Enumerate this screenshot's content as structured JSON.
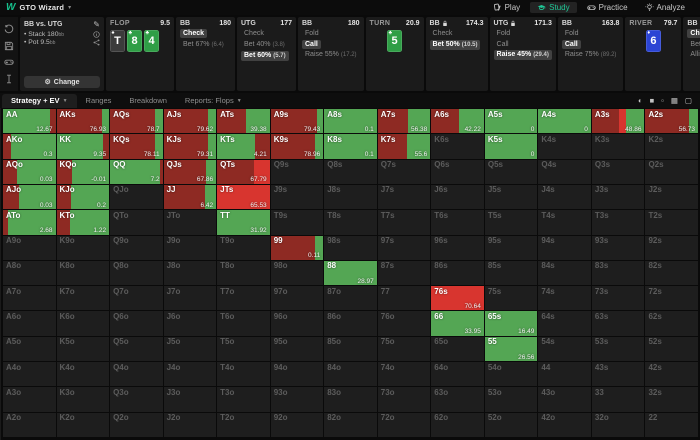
{
  "nav": {
    "brand": "GTO Wizard",
    "tabs": [
      {
        "label": "Play",
        "icon": "cards-icon",
        "active": false
      },
      {
        "label": "Study",
        "icon": "graduation-cap-icon",
        "active": true
      },
      {
        "label": "Practice",
        "icon": "gamepad-icon",
        "active": false
      },
      {
        "label": "Analyze",
        "icon": "lightbulb-icon",
        "active": false
      }
    ],
    "accent_color": "#1fc796"
  },
  "sidebar": {
    "icons": [
      "history-icon",
      "save-icon",
      "gamepad-icon",
      "text-cursor-icon"
    ]
  },
  "strategy_panel": {
    "title": "BB vs. UTG",
    "items": [
      {
        "text": "• Stack 180",
        "unit": "bb"
      },
      {
        "text": "• Pot 9.5",
        "unit": "bb"
      }
    ],
    "change_label": "Change"
  },
  "panels": [
    {
      "kind": "street",
      "name": "FLOP",
      "pot": "9.5",
      "cards": [
        {
          "rank": "T",
          "suit": "spade"
        },
        {
          "rank": "8",
          "suit": "club"
        },
        {
          "rank": "4",
          "suit": "club"
        }
      ]
    },
    {
      "kind": "actions",
      "name": "BB",
      "stack": "180",
      "rows": [
        {
          "label": "Check",
          "selected": true
        },
        {
          "label": "Bet 67%",
          "ev": "(6.4)"
        }
      ]
    },
    {
      "kind": "actions",
      "name": "UTG",
      "stack": "177",
      "rows": [
        {
          "label": "Check"
        },
        {
          "label": "Bet 40%",
          "ev": "(3.8)"
        },
        {
          "label": "Bet 60%",
          "ev": "(5.7)",
          "selected": true
        }
      ]
    },
    {
      "kind": "actions",
      "name": "BB",
      "stack": "180",
      "rows": [
        {
          "label": "Fold"
        },
        {
          "label": "Call",
          "selected": true
        },
        {
          "label": "Raise 55%",
          "ev": "(17.2)"
        }
      ]
    },
    {
      "kind": "street",
      "name": "TURN",
      "pot": "20.9",
      "cards": [
        {
          "rank": "5",
          "suit": "club"
        }
      ]
    },
    {
      "kind": "actions",
      "name": "BB",
      "locked": true,
      "stack": "174.3",
      "rows": [
        {
          "label": "Check"
        },
        {
          "label": "Bet 50%",
          "ev": "(10.5)",
          "selected": true
        }
      ]
    },
    {
      "kind": "actions",
      "name": "UTG",
      "locked": true,
      "stack": "171.3",
      "rows": [
        {
          "label": "Fold"
        },
        {
          "label": "Call"
        },
        {
          "label": "Raise 45%",
          "ev": "(29.4)",
          "selected": true
        }
      ]
    },
    {
      "kind": "actions",
      "name": "BB",
      "stack": "163.8",
      "rows": [
        {
          "label": "Fold"
        },
        {
          "label": "Call",
          "selected": true
        },
        {
          "label": "Raise 75%",
          "ev": "(89.2)"
        }
      ]
    },
    {
      "kind": "street",
      "name": "RIVER",
      "pot": "79.7",
      "cards": [
        {
          "rank": "6",
          "suit": "diamond"
        }
      ]
    },
    {
      "kind": "actions",
      "name": "BB",
      "stack": "",
      "rows": [
        {
          "label": "Check",
          "selected": true
        },
        {
          "label": "Bet"
        },
        {
          "label": "Allin"
        }
      ]
    }
  ],
  "tabbar": {
    "tabs": [
      {
        "label": "Strategy + EV",
        "caret": true,
        "active": true
      },
      {
        "label": "Ranges"
      },
      {
        "label": "Breakdown"
      },
      {
        "label": "Reports: Flops",
        "caret": true
      }
    ],
    "view_icons": [
      {
        "name": "contrast-toggle-icon",
        "glyph": "◐"
      },
      {
        "name": "filled-square-view-icon",
        "glyph": "■"
      },
      {
        "name": "small-square-view-icon",
        "glyph": "▫"
      },
      {
        "name": "grid-view-icon",
        "glyph": "▦"
      },
      {
        "name": "outline-square-view-icon",
        "glyph": "▢"
      }
    ]
  },
  "matrix": {
    "colors": {
      "G": "#54a654",
      "R": "#8e2a23",
      "B": "#d8352f"
    },
    "card_colors": {
      "spade": "#3b3b3b",
      "club": "#2f9e46",
      "diamond": "#2b44d4"
    },
    "suit_glyphs": {
      "spade": "♠",
      "club": "♣",
      "diamond": "♦"
    },
    "rows": [
      [
        {
          "h": "AA",
          "ev": "12.67",
          "seg": [
            [
              "G",
              90
            ],
            [
              "R",
              10
            ]
          ]
        },
        {
          "h": "AKs",
          "ev": "76.93",
          "seg": [
            [
              "R",
              86
            ],
            [
              "G",
              14
            ]
          ]
        },
        {
          "h": "AQs",
          "ev": "78.7",
          "seg": [
            [
              "R",
              85
            ],
            [
              "G",
              15
            ]
          ]
        },
        {
          "h": "AJs",
          "ev": "79.62",
          "seg": [
            [
              "R",
              84
            ],
            [
              "G",
              16
            ]
          ]
        },
        {
          "h": "ATs",
          "ev": "39.38",
          "seg": [
            [
              "R",
              55
            ],
            [
              "G",
              45
            ]
          ]
        },
        {
          "h": "A9s",
          "ev": "79.43",
          "seg": [
            [
              "R",
              88
            ],
            [
              "G",
              12
            ]
          ]
        },
        {
          "h": "A8s",
          "ev": "0.1",
          "seg": [
            [
              "G",
              100
            ]
          ]
        },
        {
          "h": "A7s",
          "ev": "56.38",
          "seg": [
            [
              "R",
              58
            ],
            [
              "G",
              42
            ]
          ]
        },
        {
          "h": "A6s",
          "ev": "42.22",
          "seg": [
            [
              "R",
              52
            ],
            [
              "G",
              48
            ]
          ]
        },
        {
          "h": "A5s",
          "ev": "0",
          "seg": [
            [
              "G",
              100
            ]
          ]
        },
        {
          "h": "A4s",
          "ev": "0",
          "seg": [
            [
              "G",
              100
            ]
          ]
        },
        {
          "h": "A3s",
          "ev": "48.86",
          "seg": [
            [
              "R",
              52
            ],
            [
              "B",
              13
            ],
            [
              "G",
              35
            ]
          ]
        },
        {
          "h": "A2s",
          "ev": "56.73",
          "seg": [
            [
              "R",
              82
            ],
            [
              "G",
              18
            ]
          ]
        }
      ],
      [
        {
          "h": "AKo",
          "ev": "0.3",
          "seg": [
            [
              "R",
              15
            ],
            [
              "G",
              85
            ]
          ]
        },
        {
          "h": "KK",
          "ev": "9.35",
          "seg": [
            [
              "G",
              88
            ],
            [
              "R",
              12
            ]
          ]
        },
        {
          "h": "KQs",
          "ev": "78.11",
          "seg": [
            [
              "R",
              85
            ],
            [
              "G",
              15
            ]
          ]
        },
        {
          "h": "KJs",
          "ev": "79.31",
          "seg": [
            [
              "R",
              84
            ],
            [
              "G",
              16
            ]
          ]
        },
        {
          "h": "KTs",
          "ev": "4.21",
          "seg": [
            [
              "G",
              72
            ],
            [
              "R",
              28
            ]
          ]
        },
        {
          "h": "K9s",
          "ev": "78.96",
          "seg": [
            [
              "R",
              85
            ],
            [
              "G",
              15
            ]
          ]
        },
        {
          "h": "K8s",
          "ev": "0.1",
          "seg": [
            [
              "G",
              100
            ]
          ]
        },
        {
          "h": "K7s",
          "ev": "55.6",
          "seg": [
            [
              "R",
              55
            ],
            [
              "G",
              45
            ]
          ]
        },
        {
          "h": "K6s"
        },
        {
          "h": "K5s",
          "ev": "0",
          "seg": [
            [
              "G",
              100
            ]
          ]
        },
        {
          "h": "K4s"
        },
        {
          "h": "K3s"
        },
        {
          "h": "K2s"
        }
      ],
      [
        {
          "h": "AQo",
          "ev": "0.03",
          "seg": [
            [
              "R",
              26
            ],
            [
              "G",
              74
            ]
          ]
        },
        {
          "h": "KQo",
          "ev": "-0.01",
          "seg": [
            [
              "R",
              30
            ],
            [
              "G",
              70
            ]
          ]
        },
        {
          "h": "QQ",
          "ev": "7.2",
          "seg": [
            [
              "G",
              95
            ],
            [
              "R",
              5
            ]
          ]
        },
        {
          "h": "QJs",
          "ev": "67.86",
          "seg": [
            [
              "R",
              80
            ],
            [
              "G",
              20
            ]
          ]
        },
        {
          "h": "QTs",
          "ev": "67.79",
          "seg": [
            [
              "R",
              70
            ],
            [
              "B",
              30
            ]
          ]
        },
        {
          "h": "Q9s"
        },
        {
          "h": "Q8s"
        },
        {
          "h": "Q7s"
        },
        {
          "h": "Q6s"
        },
        {
          "h": "Q5s"
        },
        {
          "h": "Q4s"
        },
        {
          "h": "Q3s"
        },
        {
          "h": "Q2s"
        }
      ],
      [
        {
          "h": "AJo",
          "ev": "0.03",
          "seg": [
            [
              "R",
              30
            ],
            [
              "G",
              70
            ]
          ]
        },
        {
          "h": "KJo",
          "ev": "0.2",
          "seg": [
            [
              "R",
              28
            ],
            [
              "G",
              72
            ]
          ]
        },
        {
          "h": "QJo"
        },
        {
          "h": "JJ",
          "ev": "6.42",
          "seg": [
            [
              "R",
              78
            ],
            [
              "G",
              22
            ]
          ]
        },
        {
          "h": "JTs",
          "ev": "65.53",
          "seg": [
            [
              "B",
              100
            ]
          ]
        },
        {
          "h": "J9s"
        },
        {
          "h": "J8s"
        },
        {
          "h": "J7s"
        },
        {
          "h": "J6s"
        },
        {
          "h": "J5s"
        },
        {
          "h": "J4s"
        },
        {
          "h": "J3s"
        },
        {
          "h": "J2s"
        }
      ],
      [
        {
          "h": "ATo",
          "ev": "2.68",
          "seg": [
            [
              "R",
              10
            ],
            [
              "G",
              90
            ]
          ]
        },
        {
          "h": "KTo",
          "ev": "1.22",
          "seg": [
            [
              "R",
              26
            ],
            [
              "G",
              74
            ]
          ]
        },
        {
          "h": "QTo"
        },
        {
          "h": "JTo"
        },
        {
          "h": "TT",
          "ev": "31.92",
          "seg": [
            [
              "G",
              100
            ]
          ]
        },
        {
          "h": "T9s"
        },
        {
          "h": "T8s"
        },
        {
          "h": "T7s"
        },
        {
          "h": "T6s"
        },
        {
          "h": "T5s"
        },
        {
          "h": "T4s"
        },
        {
          "h": "T3s"
        },
        {
          "h": "T2s"
        }
      ],
      [
        {
          "h": "A9o"
        },
        {
          "h": "K9o"
        },
        {
          "h": "Q9o"
        },
        {
          "h": "J9o"
        },
        {
          "h": "T9o"
        },
        {
          "h": "99",
          "ev": "0.11",
          "seg": [
            [
              "R",
              85
            ],
            [
              "G",
              15
            ]
          ]
        },
        {
          "h": "98s"
        },
        {
          "h": "97s"
        },
        {
          "h": "96s"
        },
        {
          "h": "95s"
        },
        {
          "h": "94s"
        },
        {
          "h": "93s"
        },
        {
          "h": "92s"
        }
      ],
      [
        {
          "h": "A8o"
        },
        {
          "h": "K8o"
        },
        {
          "h": "Q8o"
        },
        {
          "h": "J8o"
        },
        {
          "h": "T8o"
        },
        {
          "h": "98o"
        },
        {
          "h": "88",
          "ev": "28.97",
          "seg": [
            [
              "G",
              100
            ]
          ]
        },
        {
          "h": "87s"
        },
        {
          "h": "86s"
        },
        {
          "h": "85s"
        },
        {
          "h": "84s"
        },
        {
          "h": "83s"
        },
        {
          "h": "82s"
        }
      ],
      [
        {
          "h": "A7o"
        },
        {
          "h": "K7o"
        },
        {
          "h": "Q7o"
        },
        {
          "h": "J7o"
        },
        {
          "h": "T7o"
        },
        {
          "h": "97o"
        },
        {
          "h": "87o"
        },
        {
          "h": "77"
        },
        {
          "h": "76s",
          "ev": "70.64",
          "seg": [
            [
              "B",
              100
            ]
          ]
        },
        {
          "h": "75s"
        },
        {
          "h": "74s"
        },
        {
          "h": "73s"
        },
        {
          "h": "72s"
        }
      ],
      [
        {
          "h": "A6o"
        },
        {
          "h": "K6o"
        },
        {
          "h": "Q6o"
        },
        {
          "h": "J6o"
        },
        {
          "h": "T6o"
        },
        {
          "h": "96o"
        },
        {
          "h": "86o"
        },
        {
          "h": "76o"
        },
        {
          "h": "66",
          "ev": "33.95",
          "seg": [
            [
              "G",
              100
            ]
          ]
        },
        {
          "h": "65s",
          "ev": "16.49",
          "seg": [
            [
              "G",
              100
            ]
          ]
        },
        {
          "h": "64s"
        },
        {
          "h": "63s"
        },
        {
          "h": "62s"
        }
      ],
      [
        {
          "h": "A5o"
        },
        {
          "h": "K5o"
        },
        {
          "h": "Q5o"
        },
        {
          "h": "J5o"
        },
        {
          "h": "T5o"
        },
        {
          "h": "95o"
        },
        {
          "h": "85o"
        },
        {
          "h": "75o"
        },
        {
          "h": "65o"
        },
        {
          "h": "55",
          "ev": "26.56",
          "seg": [
            [
              "G",
              100
            ]
          ]
        },
        {
          "h": "54s"
        },
        {
          "h": "53s"
        },
        {
          "h": "52s"
        }
      ],
      [
        {
          "h": "A4o"
        },
        {
          "h": "K4o"
        },
        {
          "h": "Q4o"
        },
        {
          "h": "J4o"
        },
        {
          "h": "T4o"
        },
        {
          "h": "94o"
        },
        {
          "h": "84o"
        },
        {
          "h": "74o"
        },
        {
          "h": "64o"
        },
        {
          "h": "54o"
        },
        {
          "h": "44"
        },
        {
          "h": "43s"
        },
        {
          "h": "42s"
        }
      ],
      [
        {
          "h": "A3o"
        },
        {
          "h": "K3o"
        },
        {
          "h": "Q3o"
        },
        {
          "h": "J3o"
        },
        {
          "h": "T3o"
        },
        {
          "h": "93o"
        },
        {
          "h": "83o"
        },
        {
          "h": "73o"
        },
        {
          "h": "63o"
        },
        {
          "h": "53o"
        },
        {
          "h": "43o"
        },
        {
          "h": "33"
        },
        {
          "h": "32s"
        }
      ],
      [
        {
          "h": "A2o"
        },
        {
          "h": "K2o"
        },
        {
          "h": "Q2o"
        },
        {
          "h": "J2o"
        },
        {
          "h": "T2o"
        },
        {
          "h": "92o"
        },
        {
          "h": "82o"
        },
        {
          "h": "72o"
        },
        {
          "h": "62o"
        },
        {
          "h": "52o"
        },
        {
          "h": "42o"
        },
        {
          "h": "32o"
        },
        {
          "h": "22"
        }
      ]
    ]
  }
}
